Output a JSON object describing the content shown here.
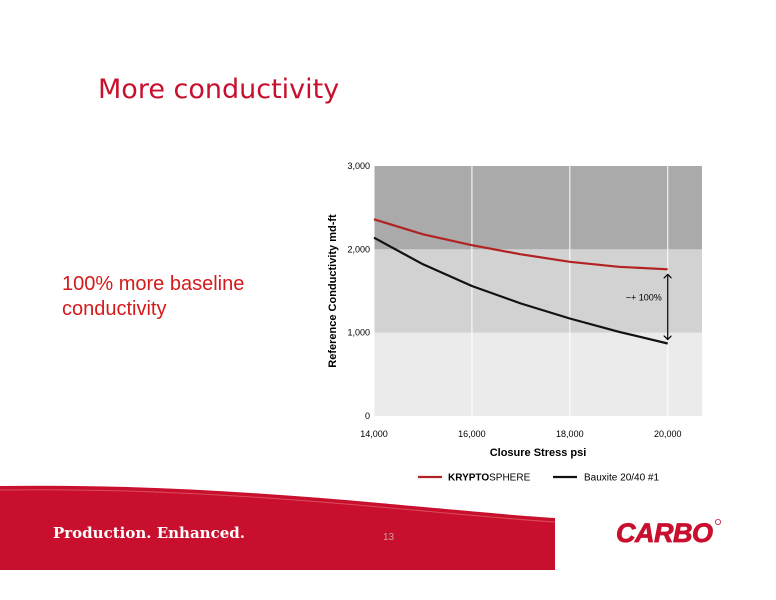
{
  "slide": {
    "title": "More conductivity",
    "body_line1": "100% more baseline",
    "body_line2": "conductivity",
    "footer_tagline": "Production. Enhanced.",
    "page_number": "13",
    "logo_text": "CARBO",
    "brand_color": "#c8102e"
  },
  "chart_data": {
    "type": "line",
    "xlabel": "Closure Stress psi",
    "ylabel": "Reference Conductivity md-ft",
    "x_ticks": [
      "14,000",
      "16,000",
      "18,000",
      "20,000"
    ],
    "y_ticks": [
      "0",
      "1,000",
      "2,000",
      "3,000"
    ],
    "xlim": [
      14000,
      20700
    ],
    "ylim": [
      0,
      3000
    ],
    "grid": true,
    "bands": [
      {
        "from": 0,
        "to": 1000,
        "color": "#ebebeb"
      },
      {
        "from": 1000,
        "to": 2000,
        "color": "#d2d2d2"
      },
      {
        "from": 2000,
        "to": 3000,
        "color": "#aaaaaa"
      }
    ],
    "x": [
      14000,
      15000,
      16000,
      17000,
      18000,
      19000,
      20000
    ],
    "series": [
      {
        "name_bold": "KRYPTO",
        "name_rest": "SPHERE",
        "color": "#b22222",
        "values": [
          2360,
          2180,
          2050,
          1940,
          1850,
          1790,
          1760
        ]
      },
      {
        "name": "Bauxite 20/40 #1",
        "color": "#111111",
        "values": [
          2140,
          1820,
          1560,
          1350,
          1170,
          1010,
          870
        ]
      }
    ],
    "annotation": {
      "text": "~+ 100%",
      "x": 20000,
      "y_top": 1760,
      "y_bottom": 870
    },
    "legend_position": "bottom"
  }
}
